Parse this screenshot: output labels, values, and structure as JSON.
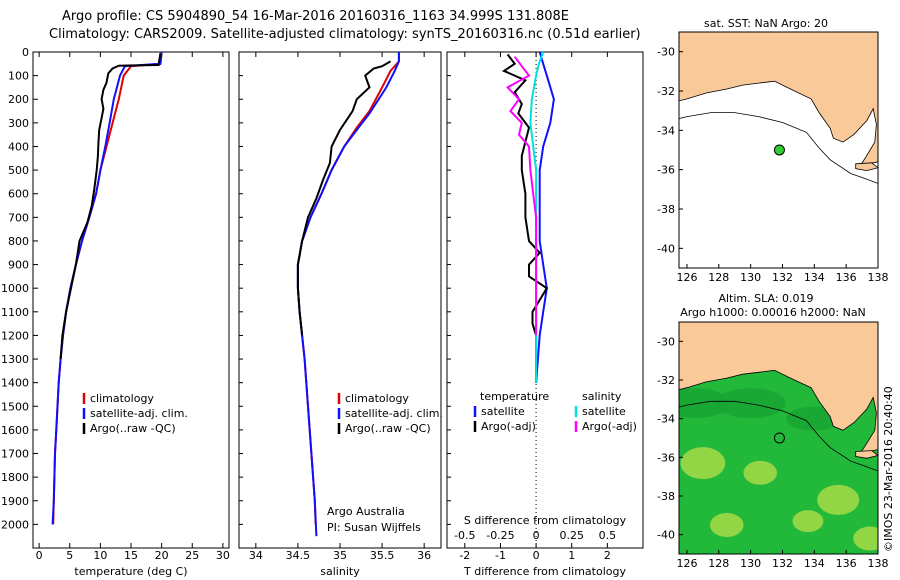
{
  "header": {
    "line1": "Argo profile: CS 5904890_54 16-Mar-2016 20160316_1163 34.999S 131.808E",
    "line2": "Climatology: CARS2009. Satellite-adjusted climatology: synTS_20160316.nc (0.51d earlier)"
  },
  "colors": {
    "climatology": "#e00000",
    "satellite": "#1010ff",
    "argo": "#000000",
    "sal_satellite": "#00e0e0",
    "sal_argo": "#ff00ff",
    "land": "#f9c999",
    "sea_green": "#22b83a"
  },
  "chart_data": [
    {
      "type": "line",
      "id": "temperature_profile",
      "xlabel": "temperature (deg C)",
      "ylabel": "",
      "xlim": [
        -1,
        31
      ],
      "ylim": [
        2100,
        0
      ],
      "xticks": [
        0,
        5,
        10,
        15,
        20,
        25,
        30
      ],
      "yticks": [
        0,
        100,
        200,
        300,
        400,
        500,
        600,
        700,
        800,
        900,
        1000,
        1100,
        1200,
        1300,
        1400,
        1500,
        1600,
        1700,
        1800,
        1900,
        2000
      ],
      "legend": [
        "climatology",
        "satellite-adj. clim.",
        "Argo(..raw -QC)"
      ],
      "legend_position": "lower-middle",
      "series": [
        {
          "name": "climatology",
          "color": "#e00000",
          "points": [
            [
              20,
              0
            ],
            [
              19.8,
              50
            ],
            [
              15,
              60
            ],
            [
              13.8,
              100
            ],
            [
              13,
              200
            ],
            [
              12,
              300
            ],
            [
              11,
              400
            ],
            [
              10,
              500
            ],
            [
              9.3,
              600
            ],
            [
              8.2,
              700
            ],
            [
              7,
              800
            ],
            [
              6,
              900
            ],
            [
              5.1,
              1000
            ],
            [
              4.4,
              1100
            ],
            [
              3.9,
              1200
            ],
            [
              3.5,
              1300
            ],
            [
              3.2,
              1400
            ],
            [
              3,
              1500
            ],
            [
              2.8,
              1600
            ],
            [
              2.6,
              1700
            ],
            [
              2.5,
              1800
            ],
            [
              2.4,
              1900
            ],
            [
              2.3,
              2000
            ]
          ]
        },
        {
          "name": "satellite-adj. clim.",
          "color": "#1010ff",
          "points": [
            [
              20,
              0
            ],
            [
              19.8,
              50
            ],
            [
              14,
              60
            ],
            [
              13.2,
              100
            ],
            [
              12.2,
              200
            ],
            [
              11.5,
              300
            ],
            [
              10.8,
              400
            ],
            [
              10,
              500
            ],
            [
              9.3,
              600
            ],
            [
              8.2,
              700
            ],
            [
              7,
              800
            ],
            [
              6,
              900
            ],
            [
              5.1,
              1000
            ],
            [
              4.4,
              1100
            ],
            [
              3.9,
              1200
            ],
            [
              3.5,
              1300
            ],
            [
              3.2,
              1400
            ],
            [
              3,
              1500
            ],
            [
              2.8,
              1600
            ],
            [
              2.6,
              1700
            ],
            [
              2.5,
              1800
            ],
            [
              2.4,
              1900
            ],
            [
              2.2,
              2000
            ]
          ]
        },
        {
          "name": "Argo(..raw -QC)",
          "color": "#000000",
          "points": [
            [
              19.8,
              5
            ],
            [
              19.5,
              55
            ],
            [
              13,
              58
            ],
            [
              12,
              70
            ],
            [
              11.3,
              90
            ],
            [
              11,
              130
            ],
            [
              10.5,
              160
            ],
            [
              10.2,
              200
            ],
            [
              10.5,
              240
            ],
            [
              10.2,
              280
            ],
            [
              9.8,
              330
            ],
            [
              9.7,
              380
            ],
            [
              9.6,
              440
            ],
            [
              9.4,
              500
            ],
            [
              9,
              580
            ],
            [
              8.6,
              650
            ],
            [
              7.9,
              720
            ],
            [
              6.6,
              800
            ],
            [
              6,
              900
            ],
            [
              5.2,
              1000
            ],
            [
              4.4,
              1100
            ],
            [
              3.8,
              1200
            ],
            [
              3.5,
              1300
            ]
          ]
        }
      ]
    },
    {
      "type": "line",
      "id": "salinity_profile",
      "xlabel": "salinity",
      "xlim": [
        33.8,
        36.2
      ],
      "ylim": [
        2100,
        0
      ],
      "xticks": [
        34,
        34.5,
        35,
        35.5,
        36
      ],
      "legend": [
        "climatology",
        "satellite-adj. clim.",
        "Argo(..raw -QC)"
      ],
      "annotation": [
        "Argo Australia",
        "PI: Susan Wijffels"
      ],
      "series": [
        {
          "name": "climatology",
          "color": "#e00000",
          "points": [
            [
              35.7,
              0
            ],
            [
              35.7,
              40
            ],
            [
              35.6,
              80
            ],
            [
              35.5,
              150
            ],
            [
              35.35,
              250
            ],
            [
              35.2,
              320
            ],
            [
              35.05,
              400
            ],
            [
              34.9,
              500
            ],
            [
              34.78,
              600
            ],
            [
              34.65,
              700
            ],
            [
              34.55,
              800
            ],
            [
              34.5,
              900
            ],
            [
              34.5,
              1000
            ],
            [
              34.52,
              1100
            ],
            [
              34.55,
              1200
            ],
            [
              34.58,
              1300
            ],
            [
              34.6,
              1400
            ],
            [
              34.62,
              1500
            ],
            [
              34.64,
              1600
            ],
            [
              34.66,
              1700
            ],
            [
              34.68,
              1800
            ],
            [
              34.7,
              1900
            ],
            [
              34.71,
              2000
            ]
          ]
        },
        {
          "name": "satellite-adj. clim.",
          "color": "#1010ff",
          "points": [
            [
              35.7,
              0
            ],
            [
              35.7,
              40
            ],
            [
              35.65,
              80
            ],
            [
              35.55,
              150
            ],
            [
              35.35,
              260
            ],
            [
              35.2,
              330
            ],
            [
              35.05,
              400
            ],
            [
              34.9,
              500
            ],
            [
              34.78,
              600
            ],
            [
              34.65,
              700
            ],
            [
              34.55,
              800
            ],
            [
              34.5,
              900
            ],
            [
              34.5,
              1000
            ],
            [
              34.52,
              1100
            ],
            [
              34.55,
              1200
            ],
            [
              34.58,
              1300
            ],
            [
              34.6,
              1400
            ],
            [
              34.62,
              1500
            ],
            [
              34.64,
              1600
            ],
            [
              34.66,
              1700
            ],
            [
              34.68,
              1800
            ],
            [
              34.7,
              1900
            ],
            [
              34.72,
              2050
            ]
          ]
        },
        {
          "name": "Argo(..raw -QC)",
          "color": "#000000",
          "points": [
            [
              35.6,
              40
            ],
            [
              35.5,
              60
            ],
            [
              35.4,
              70
            ],
            [
              35.3,
              100
            ],
            [
              35.35,
              150
            ],
            [
              35.2,
              200
            ],
            [
              35.15,
              250
            ],
            [
              35.0,
              330
            ],
            [
              34.9,
              400
            ],
            [
              34.88,
              470
            ],
            [
              34.8,
              540
            ],
            [
              34.72,
              620
            ],
            [
              34.62,
              700
            ],
            [
              34.55,
              800
            ],
            [
              34.5,
              900
            ],
            [
              34.5,
              1000
            ],
            [
              34.52,
              1100
            ],
            [
              34.55,
              1200
            ]
          ]
        }
      ]
    },
    {
      "type": "line",
      "id": "difference_profile",
      "xlabel": "T difference from climatology",
      "top_xlabel": "S difference from climatology",
      "xlim": [
        -2.5,
        3
      ],
      "ylim": [
        2100,
        0
      ],
      "xticks": [
        -2,
        -1,
        0,
        1,
        2
      ],
      "top_xticks": [
        "-0.5",
        "-0.25",
        "0",
        "0.25",
        "0.5"
      ],
      "legend_groups": {
        "temperature": [
          "satellite",
          "Argo(-adj)"
        ],
        "salinity": [
          "satellite",
          "Argo(-adj)"
        ]
      },
      "series": [
        {
          "name": "temperature satellite",
          "color": "#1010ff",
          "points": [
            [
              0.1,
              0
            ],
            [
              0.2,
              50
            ],
            [
              0.3,
              100
            ],
            [
              0.5,
              200
            ],
            [
              0.4,
              300
            ],
            [
              0.2,
              400
            ],
            [
              0.1,
              500
            ],
            [
              0.1,
              600
            ],
            [
              0.1,
              700
            ],
            [
              0.1,
              800
            ],
            [
              0.2,
              900
            ],
            [
              0.3,
              1000
            ],
            [
              0.2,
              1100
            ],
            [
              0.1,
              1200
            ],
            [
              0.05,
              1300
            ],
            [
              0,
              1400
            ]
          ]
        },
        {
          "name": "temperature Argo(-adj)",
          "color": "#000000",
          "points": [
            [
              -0.8,
              10
            ],
            [
              -0.6,
              50
            ],
            [
              -0.9,
              80
            ],
            [
              -0.3,
              120
            ],
            [
              -0.6,
              170
            ],
            [
              -0.4,
              220
            ],
            [
              -0.5,
              260
            ],
            [
              -0.2,
              320
            ],
            [
              -0.3,
              380
            ],
            [
              -0.4,
              440
            ],
            [
              -0.4,
              500
            ],
            [
              -0.3,
              600
            ],
            [
              -0.3,
              700
            ],
            [
              -0.2,
              800
            ],
            [
              0.1,
              850
            ],
            [
              -0.2,
              900
            ],
            [
              -0.2,
              950
            ],
            [
              0.3,
              1000
            ],
            [
              0.1,
              1050
            ],
            [
              -0.1,
              1100
            ],
            [
              -0.1,
              1150
            ],
            [
              0,
              1200
            ],
            [
              0,
              1300
            ],
            [
              0,
              1400
            ]
          ]
        },
        {
          "name": "salinity satellite",
          "color": "#00e0e0",
          "points": [
            [
              0.05,
              0
            ],
            [
              0.02,
              50
            ],
            [
              0.0,
              100
            ],
            [
              -0.03,
              200
            ],
            [
              -0.04,
              300
            ],
            [
              -0.02,
              400
            ],
            [
              0,
              500
            ],
            [
              0,
              700
            ],
            [
              0,
              900
            ],
            [
              0,
              1100
            ],
            [
              0,
              1300
            ],
            [
              0,
              1400
            ]
          ]
        },
        {
          "name": "salinity Argo(-adj)",
          "color": "#ff00ff",
          "points": [
            [
              -0.15,
              20
            ],
            [
              -0.1,
              60
            ],
            [
              -0.05,
              100
            ],
            [
              -0.2,
              150
            ],
            [
              -0.12,
              200
            ],
            [
              -0.18,
              250
            ],
            [
              -0.1,
              300
            ],
            [
              -0.12,
              350
            ],
            [
              -0.05,
              400
            ],
            [
              -0.04,
              500
            ],
            [
              -0.02,
              600
            ],
            [
              0,
              700
            ],
            [
              0,
              800
            ],
            [
              0,
              900
            ],
            [
              0,
              1000
            ],
            [
              0,
              1100
            ],
            [
              0,
              1200
            ]
          ]
        }
      ]
    },
    {
      "type": "heatmap",
      "id": "sst_map",
      "title": "sat. SST: NaN Argo: 20",
      "xlim": [
        125.5,
        138
      ],
      "ylim": [
        -41,
        -29
      ],
      "xticks": [
        126,
        128,
        130,
        132,
        134,
        136,
        138
      ],
      "yticks": [
        -30,
        -32,
        -34,
        -36,
        -38,
        -40
      ],
      "argo_position": [
        131.808,
        -34.999
      ]
    },
    {
      "type": "heatmap",
      "id": "sla_map",
      "title_lines": [
        "Altim. SLA: 0.019",
        "Argo h1000: 0.00016 h2000: NaN"
      ],
      "xlim": [
        125.5,
        138
      ],
      "ylim": [
        -41,
        -29
      ],
      "xticks": [
        126,
        128,
        130,
        132,
        134,
        136,
        138
      ],
      "yticks": [
        -30,
        -32,
        -34,
        -36,
        -38,
        -40
      ],
      "argo_position": [
        131.808,
        -34.999
      ]
    }
  ],
  "credit": "©IMOS 23-Mar-2016 20:40:40"
}
